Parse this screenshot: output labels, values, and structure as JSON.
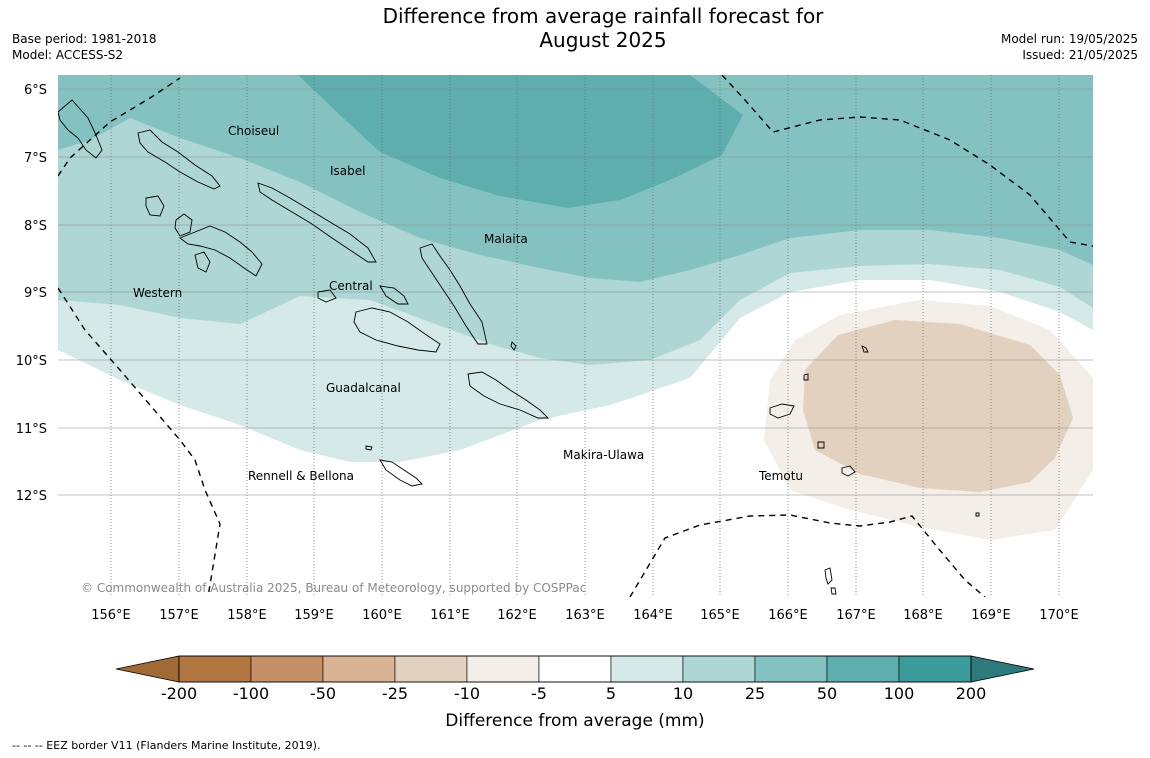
{
  "title": {
    "line1": "Difference from average rainfall forecast for",
    "line2": "August 2025"
  },
  "meta": {
    "base_period": "Base period: 1981-2018",
    "model": "Model: ACCESS-S2",
    "model_run": "Model run: 19/05/2025",
    "issued": "Issued: 21/05/2025"
  },
  "map": {
    "lat_labels": [
      "6°S",
      "7°S",
      "8°S",
      "9°S",
      "10°S",
      "11°S",
      "12°S"
    ],
    "lon_labels": [
      "156°E",
      "157°E",
      "158°E",
      "159°E",
      "160°E",
      "161°E",
      "162°E",
      "163°E",
      "164°E",
      "165°E",
      "166°E",
      "167°E",
      "168°E",
      "169°E",
      "170°E"
    ],
    "province_labels": [
      "Choiseul",
      "Isabel",
      "Malaita",
      "Western",
      "Central",
      "Guadalcanal",
      "Rennell & Bellona",
      "Makira-Ulawa",
      "Temotu"
    ],
    "copyright": "© Commonwealth of Australia 2025, Bureau of Meteorology, supported by COSPPac"
  },
  "colorbar": {
    "ticks": [
      "-200",
      "-100",
      "-50",
      "-25",
      "-10",
      "-5",
      "5",
      "10",
      "25",
      "50",
      "100",
      "200"
    ],
    "label": "Difference from average (mm)",
    "colors": {
      "under": "#a06a36",
      "bins": [
        "#b27740",
        "#c49068",
        "#d8b394",
        "#e3d1bf",
        "#f3eee8",
        "#ffffff",
        "#d4e9e8",
        "#add6d5",
        "#84c2c1",
        "#5eaeae",
        "#3b9c9b"
      ],
      "over": "#2c7a7b"
    }
  },
  "footer": "--  --  -- EEZ border V11 (Flanders Marine Institute, 2019)."
}
